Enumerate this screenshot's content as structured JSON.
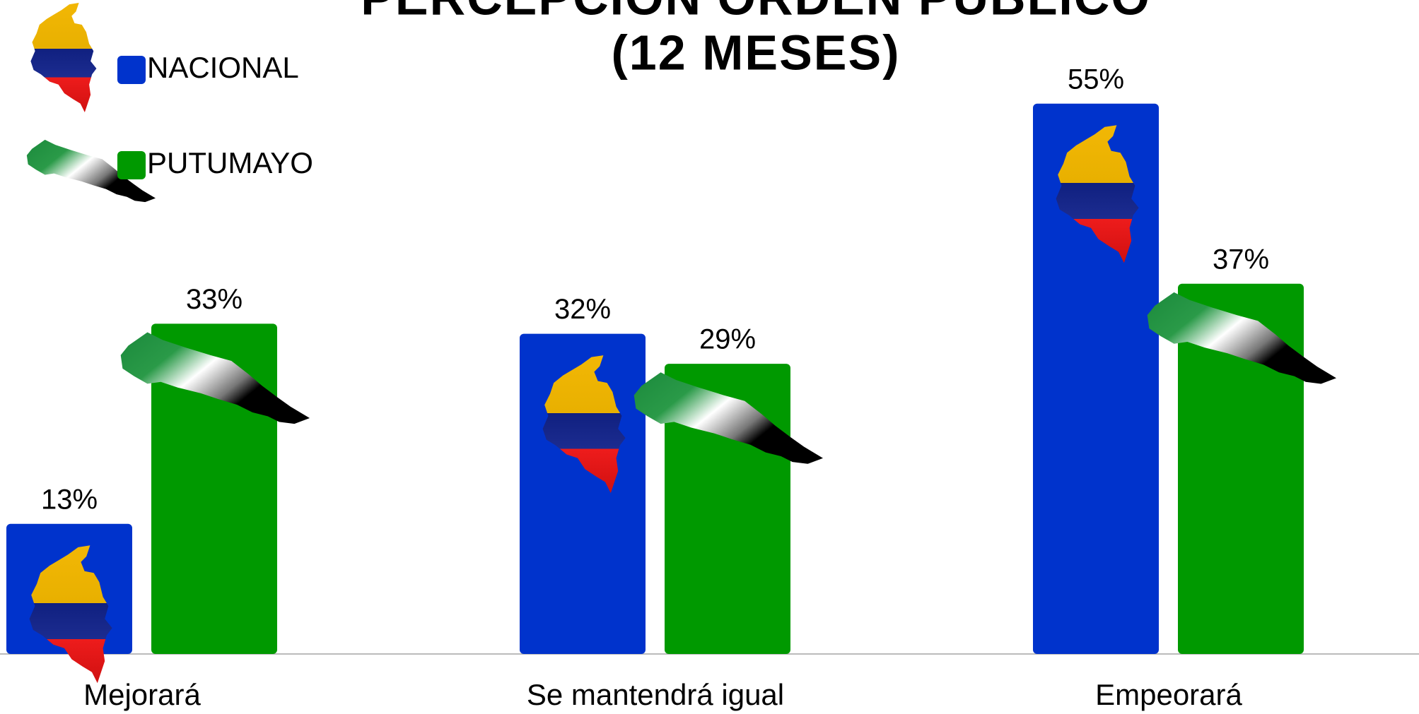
{
  "chart_data": {
    "type": "bar",
    "title": "PERCEPCIÓN ORDEN PÚBLICO",
    "subtitle": "(12 MESES)",
    "categories": [
      "Mejorará",
      "Se mantendrá igual",
      "Empeorará"
    ],
    "series": [
      {
        "name": "NACIONAL",
        "color": "#0033cc",
        "values": [
          13,
          32,
          55
        ],
        "value_labels": [
          "13%",
          "32%",
          "55%"
        ]
      },
      {
        "name": "PUTUMAYO",
        "color": "#009900",
        "values": [
          33,
          29,
          37
        ],
        "value_labels": [
          "33%",
          "29%",
          "37%"
        ]
      }
    ],
    "ylim": [
      0,
      65
    ],
    "legend": "top-left"
  }
}
